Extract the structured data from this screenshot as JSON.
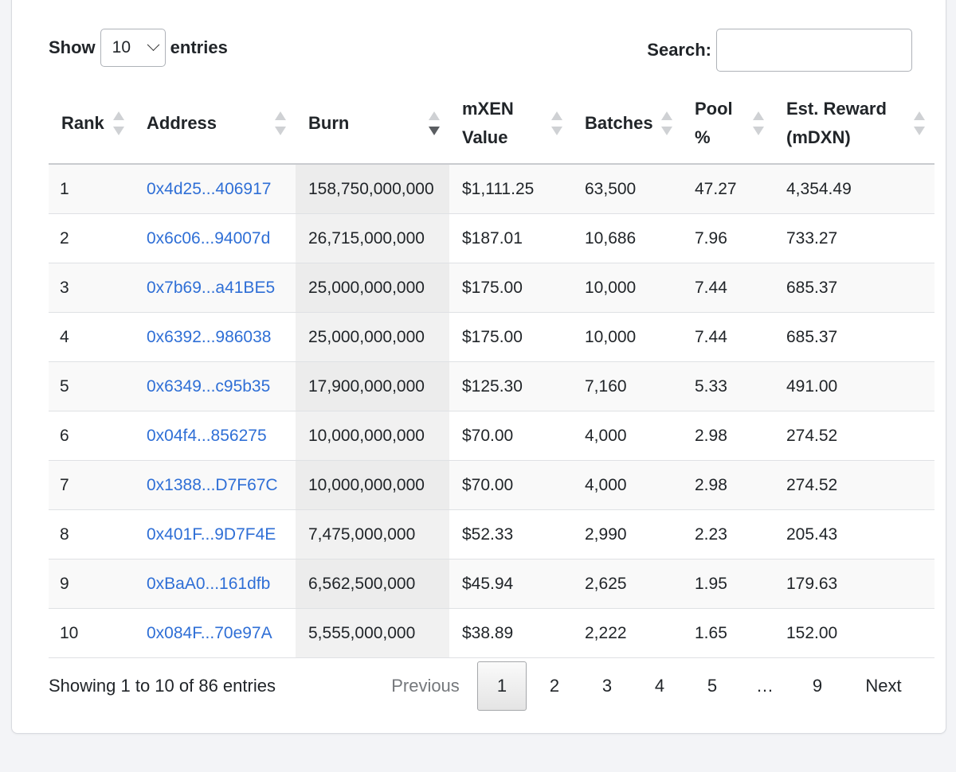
{
  "controls": {
    "show_label": "Show",
    "entries_value": "10",
    "entries_label": "entries",
    "search_label": "Search:",
    "search_value": ""
  },
  "table": {
    "columns": [
      {
        "label": "Rank",
        "sort": "none"
      },
      {
        "label": "Address",
        "sort": "none"
      },
      {
        "label": "Burn",
        "sort": "desc"
      },
      {
        "label": "mXEN Value",
        "sort": "none"
      },
      {
        "label": "Batches",
        "sort": "none"
      },
      {
        "label": "Pool %",
        "sort": "none"
      },
      {
        "label": "Est. Reward (mDXN)",
        "sort": "none"
      }
    ],
    "rows": [
      {
        "rank": "1",
        "address": "0x4d25...406917",
        "burn": "158,750,000,000",
        "value": "$1,111.25",
        "batches": "63,500",
        "pool": "47.27",
        "reward": "4,354.49"
      },
      {
        "rank": "2",
        "address": "0x6c06...94007d",
        "burn": "26,715,000,000",
        "value": "$187.01",
        "batches": "10,686",
        "pool": "7.96",
        "reward": "733.27"
      },
      {
        "rank": "3",
        "address": "0x7b69...a41BE5",
        "burn": "25,000,000,000",
        "value": "$175.00",
        "batches": "10,000",
        "pool": "7.44",
        "reward": "685.37"
      },
      {
        "rank": "4",
        "address": "0x6392...986038",
        "burn": "25,000,000,000",
        "value": "$175.00",
        "batches": "10,000",
        "pool": "7.44",
        "reward": "685.37"
      },
      {
        "rank": "5",
        "address": "0x6349...c95b35",
        "burn": "17,900,000,000",
        "value": "$125.30",
        "batches": "7,160",
        "pool": "5.33",
        "reward": "491.00"
      },
      {
        "rank": "6",
        "address": "0x04f4...856275",
        "burn": "10,000,000,000",
        "value": "$70.00",
        "batches": "4,000",
        "pool": "2.98",
        "reward": "274.52"
      },
      {
        "rank": "7",
        "address": "0x1388...D7F67C",
        "burn": "10,000,000,000",
        "value": "$70.00",
        "batches": "4,000",
        "pool": "2.98",
        "reward": "274.52"
      },
      {
        "rank": "8",
        "address": "0x401F...9D7F4E",
        "burn": "7,475,000,000",
        "value": "$52.33",
        "batches": "2,990",
        "pool": "2.23",
        "reward": "205.43"
      },
      {
        "rank": "9",
        "address": "0xBaA0...161dfb",
        "burn": "6,562,500,000",
        "value": "$45.94",
        "batches": "2,625",
        "pool": "1.95",
        "reward": "179.63"
      },
      {
        "rank": "10",
        "address": "0x084F...70e97A",
        "burn": "5,555,000,000",
        "value": "$38.89",
        "batches": "2,222",
        "pool": "1.65",
        "reward": "152.00"
      }
    ]
  },
  "footer": {
    "info": "Showing 1 to 10 of 86 entries",
    "previous": "Previous",
    "pages": [
      "1",
      "2",
      "3",
      "4",
      "5"
    ],
    "current_page": "1",
    "ellipsis": "…",
    "last_page": "9",
    "next": "Next"
  },
  "colors": {
    "link": "#2f6fd6",
    "clipped_text": "#e02020"
  }
}
